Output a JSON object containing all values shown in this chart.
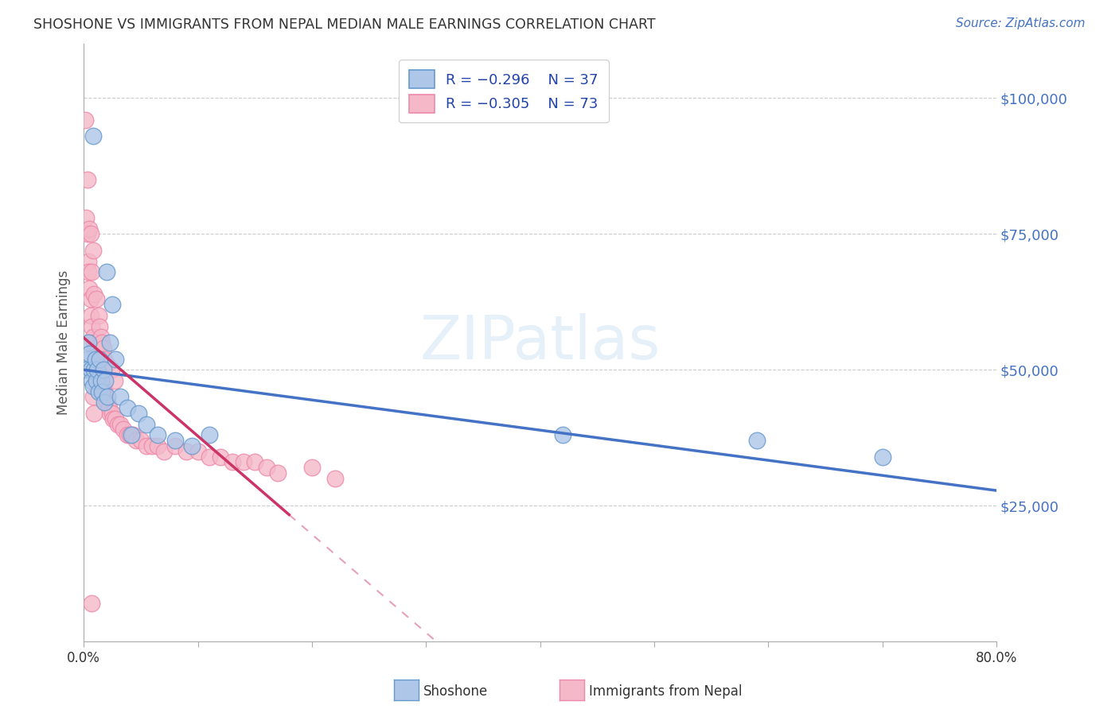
{
  "title": "SHOSHONE VS IMMIGRANTS FROM NEPAL MEDIAN MALE EARNINGS CORRELATION CHART",
  "source": "Source: ZipAtlas.com",
  "ylabel": "Median Male Earnings",
  "ytick_labels": [
    "$25,000",
    "$50,000",
    "$75,000",
    "$100,000"
  ],
  "ytick_values": [
    25000,
    50000,
    75000,
    100000
  ],
  "legend_r1": "R = –0.296",
  "legend_n1": "N = 37",
  "legend_r2": "R = –0.305",
  "legend_n2": "N = 73",
  "legend_label1": "Shoshone",
  "legend_label2": "Immigrants from Nepal",
  "watermark": "ZIPatlas",
  "title_color": "#333333",
  "source_color": "#4472c4",
  "axis_label_color": "#555555",
  "ytick_color": "#4472c4",
  "xtick_color": "#333333",
  "grid_color": "#cccccc",
  "shoshone_color": "#aec6e8",
  "nepal_color": "#f4b8c8",
  "shoshone_edge": "#6699cc",
  "nepal_edge": "#ee88aa",
  "trend_shoshone_color": "#4472c4",
  "trend_nepal_solid_color": "#cc3366",
  "trend_nepal_dash_color": "#e8a0b8",
  "shoshone_x": [
    0.008,
    0.02,
    0.012,
    0.003,
    0.002,
    0.004,
    0.005,
    0.006,
    0.007,
    0.008,
    0.009,
    0.01,
    0.011,
    0.012,
    0.013,
    0.014,
    0.015,
    0.016,
    0.017,
    0.018,
    0.019,
    0.021,
    0.023,
    0.025,
    0.028,
    0.032,
    0.038,
    0.042,
    0.048,
    0.055,
    0.065,
    0.08,
    0.095,
    0.11,
    0.42,
    0.59,
    0.7
  ],
  "shoshone_y": [
    93000,
    68000,
    48000,
    52000,
    50000,
    55000,
    53000,
    50000,
    48000,
    47000,
    50000,
    52000,
    48000,
    50000,
    46000,
    52000,
    48000,
    46000,
    50000,
    44000,
    48000,
    45000,
    55000,
    62000,
    52000,
    45000,
    43000,
    38000,
    42000,
    40000,
    38000,
    37000,
    36000,
    38000,
    38000,
    37000,
    34000
  ],
  "nepal_x": [
    0.001,
    0.002,
    0.003,
    0.003,
    0.004,
    0.004,
    0.005,
    0.005,
    0.006,
    0.006,
    0.006,
    0.007,
    0.007,
    0.008,
    0.008,
    0.009,
    0.009,
    0.01,
    0.01,
    0.011,
    0.011,
    0.012,
    0.012,
    0.013,
    0.013,
    0.014,
    0.014,
    0.015,
    0.015,
    0.016,
    0.016,
    0.017,
    0.017,
    0.018,
    0.018,
    0.019,
    0.02,
    0.02,
    0.021,
    0.022,
    0.023,
    0.024,
    0.025,
    0.026,
    0.027,
    0.028,
    0.03,
    0.032,
    0.035,
    0.038,
    0.04,
    0.043,
    0.046,
    0.05,
    0.055,
    0.06,
    0.065,
    0.07,
    0.08,
    0.09,
    0.1,
    0.11,
    0.12,
    0.13,
    0.14,
    0.15,
    0.16,
    0.17,
    0.2,
    0.22,
    0.007,
    0.008,
    0.009
  ],
  "nepal_y": [
    96000,
    78000,
    75000,
    85000,
    70000,
    68000,
    65000,
    76000,
    63000,
    75000,
    60000,
    68000,
    58000,
    56000,
    72000,
    55000,
    64000,
    54000,
    53000,
    52000,
    63000,
    52000,
    51000,
    50000,
    60000,
    49000,
    58000,
    48000,
    56000,
    47000,
    55000,
    47000,
    54000,
    46000,
    52000,
    45000,
    44000,
    51000,
    44000,
    43000,
    42000,
    50000,
    42000,
    41000,
    48000,
    41000,
    40000,
    40000,
    39000,
    38000,
    38000,
    38000,
    37000,
    37000,
    36000,
    36000,
    36000,
    35000,
    36000,
    35000,
    35000,
    34000,
    34000,
    33000,
    33000,
    33000,
    32000,
    31000,
    32000,
    30000,
    7000,
    45000,
    42000
  ],
  "xmin": 0.0,
  "xmax": 0.8,
  "ymin": 0,
  "ymax": 110000,
  "figsize": [
    14.06,
    8.92
  ],
  "dpi": 100
}
